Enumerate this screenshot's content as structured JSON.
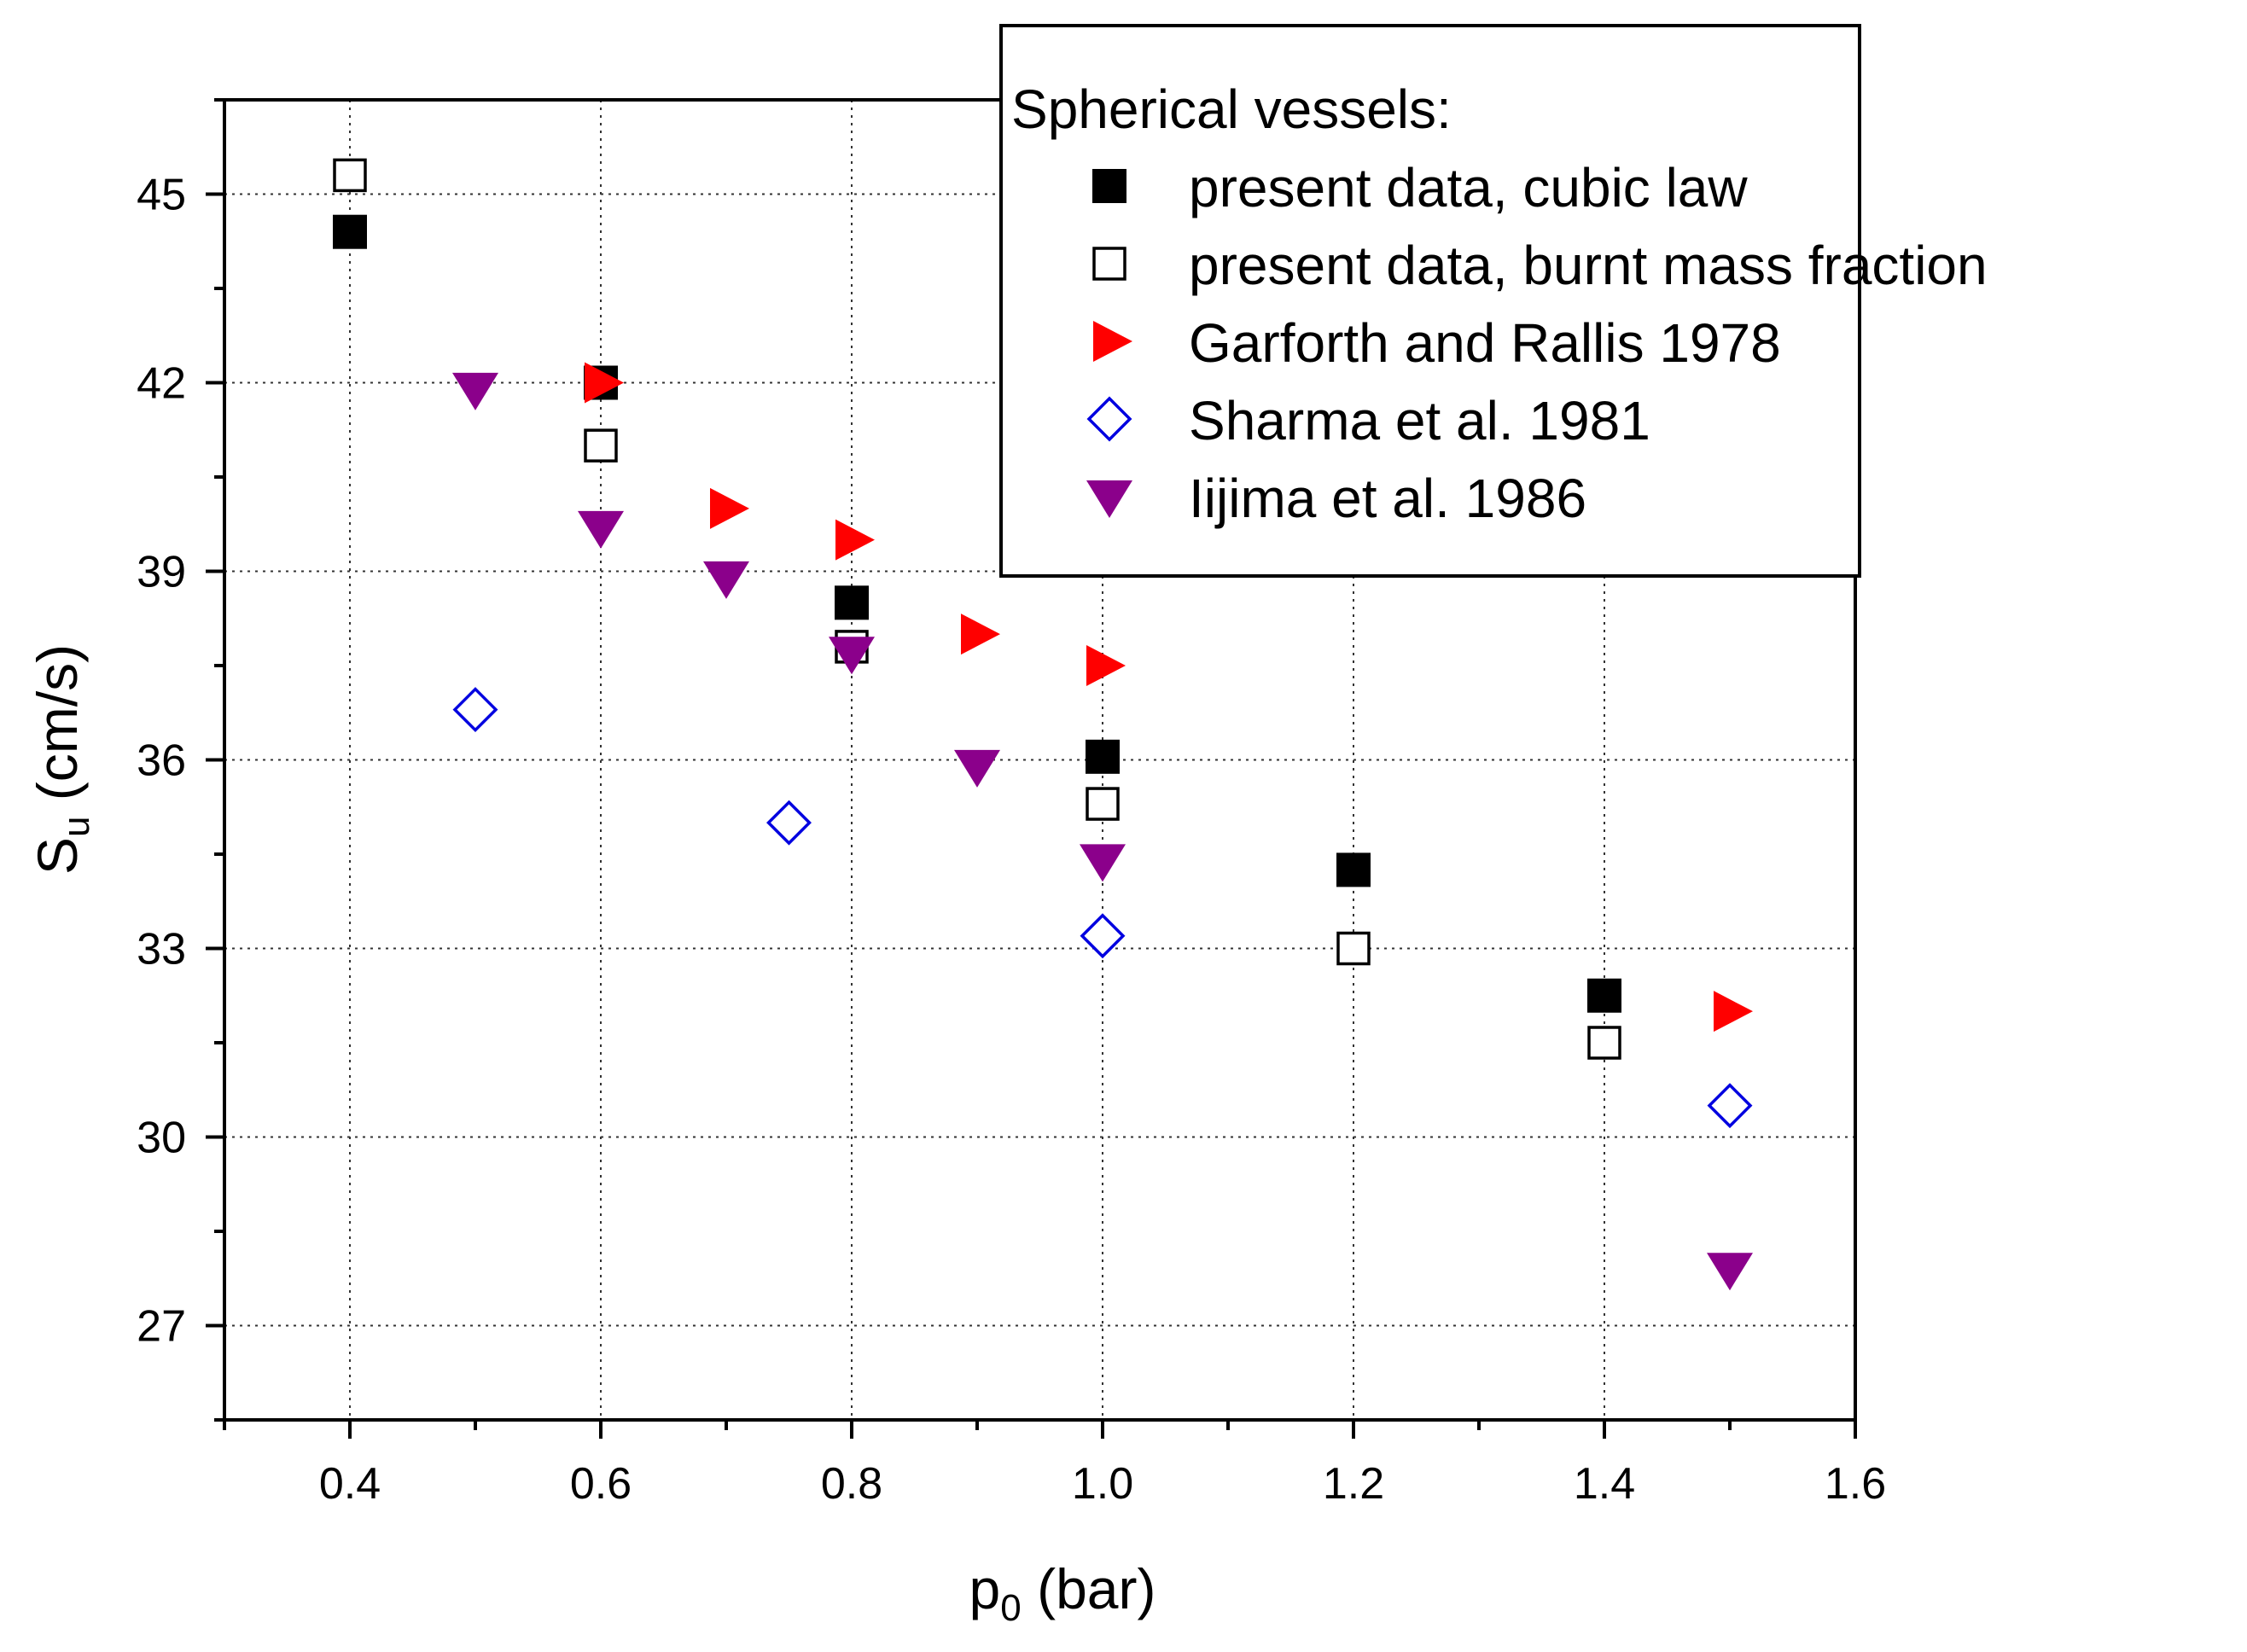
{
  "chart_data": {
    "type": "scatter",
    "xlabel": {
      "main": "p",
      "sub": "0",
      "rest": " (bar)"
    },
    "ylabel": {
      "main": "S",
      "sub": "u",
      "rest": " (cm/s)"
    },
    "xlim": [
      0.3,
      1.6
    ],
    "ylim": [
      25.5,
      46.5
    ],
    "xticks": [
      0.4,
      0.6,
      0.8,
      1.0,
      1.2,
      1.4,
      1.6
    ],
    "xtick_labels": [
      "0.4",
      "0.6",
      "0.8",
      "1.0",
      "1.2",
      "1.4",
      "1.6"
    ],
    "yticks": [
      27,
      30,
      33,
      36,
      39,
      42,
      45
    ],
    "ytick_labels": [
      "27",
      "30",
      "33",
      "36",
      "39",
      "42",
      "45"
    ],
    "grid": true,
    "legend_title": "Spherical vessels:",
    "legend_position": "top-right",
    "series": [
      {
        "name": "present data, cubic law",
        "marker": "square-filled",
        "color": "#000000",
        "x": [
          0.4,
          0.6,
          0.8,
          1.0,
          1.2,
          1.4
        ],
        "y": [
          44.4,
          42.0,
          38.5,
          36.05,
          34.25,
          32.25
        ]
      },
      {
        "name": "present data, burnt mass fraction",
        "marker": "square-open",
        "color": "#000000",
        "x": [
          0.4,
          0.6,
          0.8,
          1.0,
          1.2,
          1.4
        ],
        "y": [
          45.3,
          41.0,
          37.8,
          35.3,
          33.0,
          31.5
        ]
      },
      {
        "name": "Garforth and Rallis 1978",
        "marker": "triangle-right",
        "color": "#ff0000",
        "x": [
          0.6,
          0.7,
          0.8,
          0.9,
          1.0,
          1.5
        ],
        "y": [
          42.0,
          40.0,
          39.5,
          38.0,
          37.5,
          32.0
        ]
      },
      {
        "name": "Sharma et al. 1981",
        "marker": "diamond-open",
        "color": "#0000e0",
        "x": [
          0.5,
          0.75,
          1.0,
          1.5
        ],
        "y": [
          36.8,
          35.0,
          33.2,
          30.5
        ]
      },
      {
        "name": "Iijima et al. 1986",
        "marker": "triangle-down",
        "color": "#8b008b",
        "x": [
          0.5,
          0.6,
          0.7,
          0.8,
          0.9,
          1.0,
          1.5
        ],
        "y": [
          41.9,
          39.7,
          38.9,
          37.7,
          35.9,
          34.4,
          27.9
        ]
      }
    ]
  }
}
